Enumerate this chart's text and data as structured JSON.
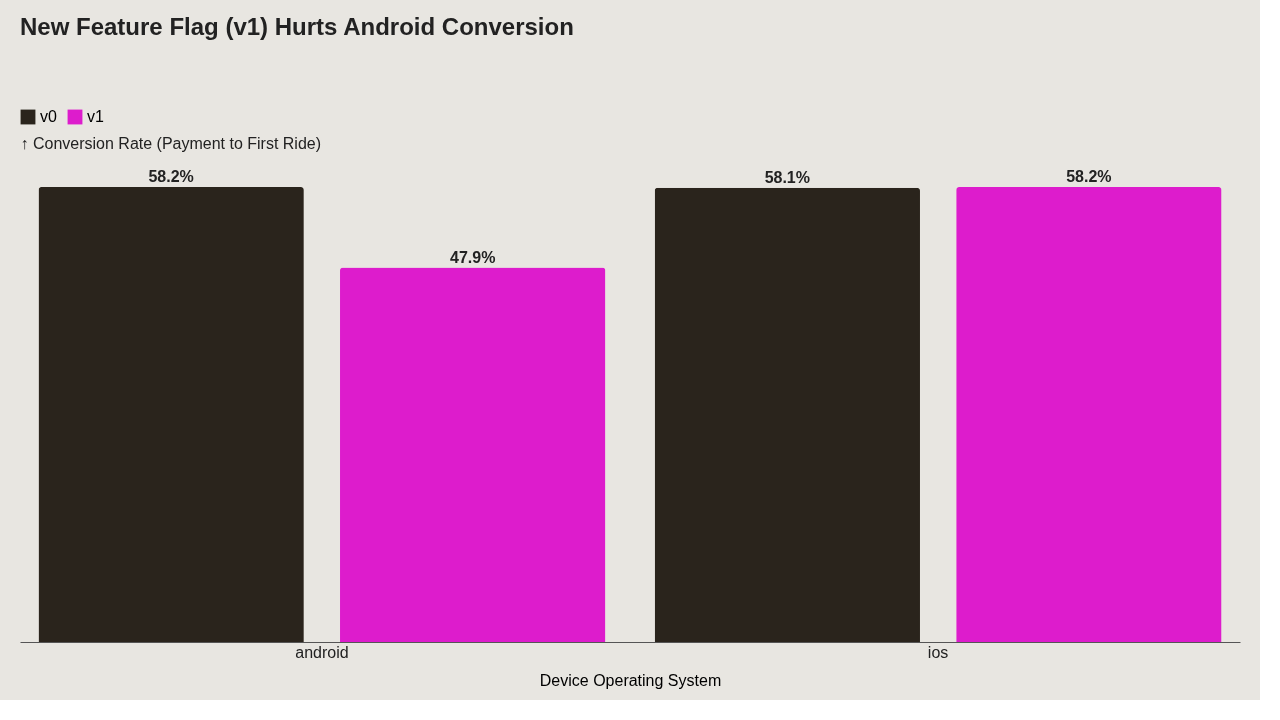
{
  "chart_data": {
    "type": "bar",
    "title": "New Feature Flag (v1) Hurts Android Conversion",
    "xlabel": "Device Operating System",
    "ylabel": "↑ Conversion Rate (Payment to First Ride)",
    "categories": [
      "android",
      "ios"
    ],
    "series": [
      {
        "name": "v0",
        "color": "#2a241c",
        "values": [
          58.2,
          58.1
        ],
        "value_labels": [
          "58.2%",
          "58.1%"
        ]
      },
      {
        "name": "v1",
        "color": "#dd1ccc",
        "values": [
          47.9,
          58.2
        ],
        "value_labels": [
          "47.9%",
          "58.2%"
        ]
      }
    ],
    "legend": "top left",
    "grid": false
  }
}
